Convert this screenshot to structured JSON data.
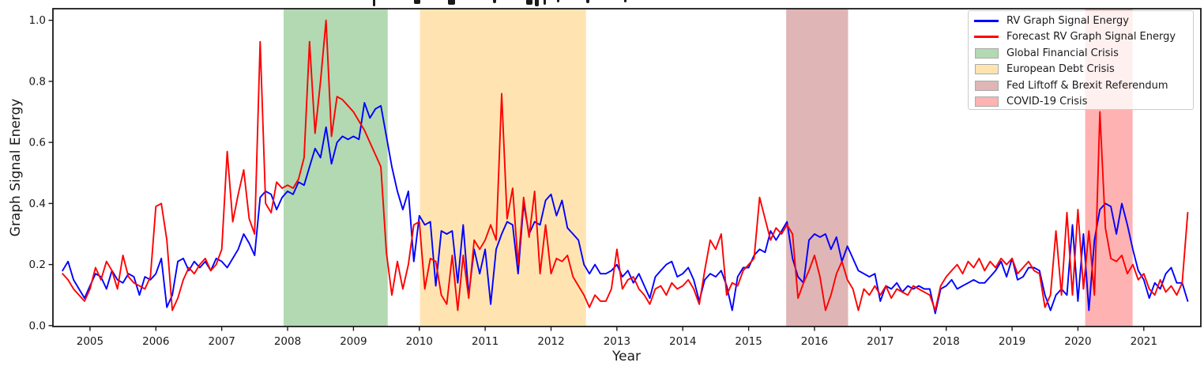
{
  "figure": {
    "background": "#ffffff",
    "title_cropped": true,
    "title_fragments": [
      {
        "x": 472,
        "w": 3,
        "h": 8
      },
      {
        "x": 524,
        "w": 8,
        "h": 5
      },
      {
        "x": 567,
        "w": 9,
        "h": 6
      },
      {
        "x": 624,
        "w": 4,
        "h": 4
      },
      {
        "x": 666,
        "w": 8,
        "h": 6
      },
      {
        "x": 677,
        "w": 5,
        "h": 8
      },
      {
        "x": 688,
        "w": 3,
        "h": 6
      },
      {
        "x": 705,
        "w": 3,
        "h": 3
      },
      {
        "x": 742,
        "w": 4,
        "h": 4
      },
      {
        "x": 790,
        "w": 3,
        "h": 3
      }
    ]
  },
  "legend": {
    "items": [
      {
        "label": "RV Graph Signal Energy",
        "swatch": "line",
        "color": "#0000ff"
      },
      {
        "label": "Forecast RV Graph Signal Energy",
        "swatch": "line",
        "color": "#ff0000"
      },
      {
        "label": "Global Financial Crisis",
        "swatch": "patch",
        "color": "rgba(0,128,0,0.30)"
      },
      {
        "label": "European Debt Crisis",
        "swatch": "patch",
        "color": "rgba(255,165,0,0.30)"
      },
      {
        "label": "Fed Liftoff & Brexit Referendum",
        "swatch": "patch",
        "color": "rgba(165,42,42,0.35)"
      },
      {
        "label": "COVID-19 Crisis",
        "swatch": "patch",
        "color": "rgba(255,0,0,0.30)"
      }
    ]
  },
  "chart_data": {
    "type": "line",
    "xlabel": "Year",
    "ylabel": "Graph Signal Energy",
    "xlim": [
      2004.437,
      2021.866
    ],
    "ylim": [
      -0.003,
      1.038
    ],
    "x_ticks": [
      2005,
      2006,
      2007,
      2008,
      2009,
      2010,
      2011,
      2012,
      2013,
      2014,
      2015,
      2016,
      2017,
      2018,
      2019,
      2020,
      2021
    ],
    "y_ticks": [
      0.0,
      0.2,
      0.4,
      0.6,
      0.8,
      1.0
    ],
    "grid": false,
    "legend_position": "upper right",
    "x_start": 2004.5833,
    "x_step_years": 0.083333,
    "series": [
      {
        "name": "RV Graph Signal Energy",
        "color": "#0000ff",
        "values": [
          0.18,
          0.21,
          0.15,
          0.12,
          0.09,
          0.13,
          0.17,
          0.16,
          0.12,
          0.18,
          0.15,
          0.14,
          0.17,
          0.16,
          0.1,
          0.16,
          0.15,
          0.17,
          0.22,
          0.06,
          0.1,
          0.21,
          0.22,
          0.18,
          0.21,
          0.19,
          0.21,
          0.18,
          0.22,
          0.21,
          0.19,
          0.22,
          0.25,
          0.3,
          0.27,
          0.23,
          0.42,
          0.44,
          0.43,
          0.38,
          0.42,
          0.44,
          0.43,
          0.47,
          0.46,
          0.52,
          0.58,
          0.55,
          0.65,
          0.53,
          0.6,
          0.62,
          0.61,
          0.62,
          0.61,
          0.73,
          0.68,
          0.71,
          0.72,
          0.62,
          0.52,
          0.44,
          0.38,
          0.44,
          0.21,
          0.36,
          0.33,
          0.34,
          0.13,
          0.31,
          0.3,
          0.31,
          0.14,
          0.33,
          0.1,
          0.25,
          0.17,
          0.25,
          0.07,
          0.25,
          0.3,
          0.34,
          0.33,
          0.17,
          0.4,
          0.3,
          0.34,
          0.33,
          0.41,
          0.43,
          0.36,
          0.41,
          0.32,
          0.3,
          0.28,
          0.2,
          0.17,
          0.2,
          0.17,
          0.17,
          0.18,
          0.2,
          0.16,
          0.18,
          0.14,
          0.17,
          0.13,
          0.09,
          0.16,
          0.18,
          0.2,
          0.21,
          0.16,
          0.17,
          0.19,
          0.15,
          0.08,
          0.15,
          0.17,
          0.16,
          0.18,
          0.13,
          0.05,
          0.16,
          0.19,
          0.19,
          0.23,
          0.25,
          0.24,
          0.31,
          0.28,
          0.31,
          0.34,
          0.22,
          0.16,
          0.14,
          0.28,
          0.3,
          0.29,
          0.3,
          0.25,
          0.29,
          0.21,
          0.26,
          0.22,
          0.18,
          0.17,
          0.16,
          0.17,
          0.08,
          0.13,
          0.12,
          0.14,
          0.11,
          0.13,
          0.12,
          0.13,
          0.12,
          0.12,
          0.04,
          0.12,
          0.13,
          0.15,
          0.12,
          0.13,
          0.14,
          0.15,
          0.14,
          0.14,
          0.16,
          0.18,
          0.21,
          0.16,
          0.22,
          0.15,
          0.16,
          0.19,
          0.19,
          0.18,
          0.1,
          0.05,
          0.1,
          0.12,
          0.1,
          0.33,
          0.08,
          0.3,
          0.05,
          0.28,
          0.38,
          0.4,
          0.39,
          0.3,
          0.4,
          0.33,
          0.25,
          0.18,
          0.15,
          0.09,
          0.14,
          0.12,
          0.17,
          0.19,
          0.14,
          0.14,
          0.08
        ]
      },
      {
        "name": "Forecast RV Graph Signal Energy",
        "color": "#ff0000",
        "values": [
          0.17,
          0.15,
          0.12,
          0.1,
          0.08,
          0.12,
          0.19,
          0.15,
          0.21,
          0.18,
          0.12,
          0.23,
          0.16,
          0.14,
          0.13,
          0.12,
          0.16,
          0.39,
          0.4,
          0.28,
          0.05,
          0.09,
          0.15,
          0.19,
          0.17,
          0.2,
          0.22,
          0.18,
          0.2,
          0.25,
          0.57,
          0.34,
          0.43,
          0.51,
          0.35,
          0.3,
          0.93,
          0.4,
          0.37,
          0.47,
          0.45,
          0.46,
          0.45,
          0.48,
          0.55,
          0.93,
          0.63,
          0.8,
          1.0,
          0.62,
          0.75,
          0.74,
          0.72,
          0.7,
          0.67,
          0.64,
          0.6,
          0.56,
          0.52,
          0.24,
          0.1,
          0.21,
          0.12,
          0.2,
          0.33,
          0.34,
          0.12,
          0.22,
          0.21,
          0.1,
          0.07,
          0.23,
          0.05,
          0.23,
          0.09,
          0.28,
          0.25,
          0.28,
          0.33,
          0.28,
          0.76,
          0.35,
          0.45,
          0.2,
          0.42,
          0.29,
          0.44,
          0.17,
          0.33,
          0.17,
          0.22,
          0.21,
          0.23,
          0.16,
          0.13,
          0.1,
          0.06,
          0.1,
          0.08,
          0.08,
          0.12,
          0.25,
          0.12,
          0.15,
          0.16,
          0.12,
          0.1,
          0.07,
          0.12,
          0.13,
          0.1,
          0.14,
          0.12,
          0.13,
          0.15,
          0.12,
          0.07,
          0.18,
          0.28,
          0.25,
          0.3,
          0.1,
          0.14,
          0.13,
          0.18,
          0.2,
          0.22,
          0.42,
          0.35,
          0.28,
          0.32,
          0.3,
          0.33,
          0.3,
          0.09,
          0.14,
          0.18,
          0.23,
          0.16,
          0.05,
          0.1,
          0.17,
          0.21,
          0.15,
          0.12,
          0.05,
          0.12,
          0.1,
          0.13,
          0.1,
          0.13,
          0.09,
          0.12,
          0.11,
          0.1,
          0.13,
          0.12,
          0.11,
          0.1,
          0.05,
          0.13,
          0.16,
          0.18,
          0.2,
          0.17,
          0.21,
          0.19,
          0.22,
          0.18,
          0.21,
          0.19,
          0.22,
          0.2,
          0.22,
          0.17,
          0.19,
          0.21,
          0.18,
          0.17,
          0.06,
          0.1,
          0.31,
          0.1,
          0.37,
          0.1,
          0.38,
          0.12,
          0.31,
          0.1,
          0.7,
          0.32,
          0.22,
          0.21,
          0.23,
          0.17,
          0.2,
          0.15,
          0.17,
          0.12,
          0.1,
          0.15,
          0.11,
          0.13,
          0.1,
          0.14,
          0.37
        ]
      }
    ],
    "bands": [
      {
        "label": "Global Financial Crisis",
        "from": 2007.94,
        "to": 2009.52,
        "color": "rgba(0,128,0,0.30)"
      },
      {
        "label": "European Debt Crisis",
        "from": 2010.01,
        "to": 2012.53,
        "color": "rgba(255,165,0,0.30)"
      },
      {
        "label": "Fed Liftoff & Brexit Referendum",
        "from": 2015.57,
        "to": 2016.51,
        "color": "rgba(165,42,42,0.35)"
      },
      {
        "label": "COVID-19 Crisis",
        "from": 2020.11,
        "to": 2020.83,
        "color": "rgba(255,0,0,0.30)"
      }
    ]
  }
}
